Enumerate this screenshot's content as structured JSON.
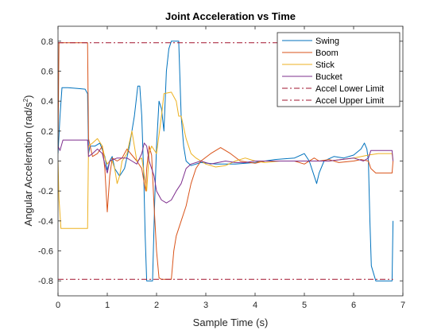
{
  "chart_data": {
    "type": "line",
    "title": "Joint Acceleration vs Time",
    "xlabel": "Sample Time (s)",
    "ylabel": "Angular  Acceleration  (rad/s",
    "ylabel_sup": "2",
    "ylabel_close": ")",
    "xlim": [
      0,
      7
    ],
    "ylim": [
      -0.9,
      0.9
    ],
    "x_ticks": [
      0,
      1,
      2,
      3,
      4,
      5,
      6,
      7
    ],
    "x_tick_labels": [
      "0",
      "1",
      "2",
      "3",
      "4",
      "5",
      "6",
      "7"
    ],
    "y_ticks": [
      -0.8,
      -0.6,
      -0.4,
      -0.2,
      0,
      0.2,
      0.4,
      0.6,
      0.8
    ],
    "y_tick_labels": [
      "-0.8",
      "-0.6",
      "-0.4",
      "-0.2",
      "0",
      "0.2",
      "0.4",
      "0.6",
      "0.8"
    ],
    "grid": false,
    "legend_position": "top-right",
    "series": [
      {
        "name": "Swing",
        "color": "#0072BD",
        "dash": "solid",
        "points": [
          [
            0,
            0.05
          ],
          [
            0.04,
            0.3
          ],
          [
            0.08,
            0.49
          ],
          [
            0.2,
            0.49
          ],
          [
            0.4,
            0.485
          ],
          [
            0.55,
            0.48
          ],
          [
            0.6,
            0.45
          ],
          [
            0.62,
            0.05
          ],
          [
            0.65,
            0.1
          ],
          [
            0.75,
            0.1
          ],
          [
            0.85,
            0.12
          ],
          [
            0.95,
            0.03
          ],
          [
            1.0,
            -0.06
          ],
          [
            1.05,
            0.0
          ],
          [
            1.1,
            0.03
          ],
          [
            1.15,
            -0.05
          ],
          [
            1.25,
            -0.1
          ],
          [
            1.35,
            -0.05
          ],
          [
            1.45,
            0.1
          ],
          [
            1.55,
            0.3
          ],
          [
            1.62,
            0.5
          ],
          [
            1.66,
            0.5
          ],
          [
            1.7,
            0.3
          ],
          [
            1.74,
            -0.1
          ],
          [
            1.77,
            -0.5
          ],
          [
            1.8,
            -0.8
          ],
          [
            1.92,
            -0.8
          ],
          [
            1.96,
            -0.3
          ],
          [
            2.0,
            0.1
          ],
          [
            2.05,
            0.4
          ],
          [
            2.1,
            0.35
          ],
          [
            2.15,
            0.2
          ],
          [
            2.2,
            0.6
          ],
          [
            2.25,
            0.75
          ],
          [
            2.3,
            0.8
          ],
          [
            2.45,
            0.8
          ],
          [
            2.5,
            0.3
          ],
          [
            2.55,
            0.1
          ],
          [
            2.6,
            0.0
          ],
          [
            2.7,
            -0.03
          ],
          [
            2.9,
            -0.01
          ],
          [
            3.2,
            -0.02
          ],
          [
            3.6,
            -0.02
          ],
          [
            4.0,
            -0.01
          ],
          [
            4.4,
            0.01
          ],
          [
            4.8,
            0.02
          ],
          [
            5.0,
            0.05
          ],
          [
            5.1,
            0.0
          ],
          [
            5.2,
            -0.1
          ],
          [
            5.25,
            -0.15
          ],
          [
            5.3,
            -0.08
          ],
          [
            5.4,
            0.0
          ],
          [
            5.6,
            0.03
          ],
          [
            5.8,
            0.02
          ],
          [
            6.0,
            0.04
          ],
          [
            6.15,
            0.08
          ],
          [
            6.22,
            0.12
          ],
          [
            6.27,
            0.08
          ],
          [
            6.3,
            0.0
          ],
          [
            6.33,
            -0.4
          ],
          [
            6.36,
            -0.7
          ],
          [
            6.45,
            -0.8
          ],
          [
            6.78,
            -0.8
          ],
          [
            6.8,
            -0.4
          ]
        ]
      },
      {
        "name": "Boom",
        "color": "#D95319",
        "dash": "solid",
        "points": [
          [
            0,
            0.1
          ],
          [
            0.02,
            0.79
          ],
          [
            0.6,
            0.79
          ],
          [
            0.62,
            0.15
          ],
          [
            0.7,
            0.03
          ],
          [
            0.8,
            0.05
          ],
          [
            0.9,
            0.1
          ],
          [
            0.95,
            -0.05
          ],
          [
            1.0,
            -0.34
          ],
          [
            1.05,
            -0.1
          ],
          [
            1.1,
            0.02
          ],
          [
            1.2,
            0.0
          ],
          [
            1.3,
            0.02
          ],
          [
            1.4,
            0.08
          ],
          [
            1.5,
            0.04
          ],
          [
            1.6,
            0.0
          ],
          [
            1.7,
            -0.05
          ],
          [
            1.75,
            -0.15
          ],
          [
            1.78,
            -0.2
          ],
          [
            1.8,
            -0.05
          ],
          [
            1.85,
            0.1
          ],
          [
            1.9,
            0.04
          ],
          [
            1.95,
            -0.3
          ],
          [
            2.0,
            -0.6
          ],
          [
            2.05,
            -0.78
          ],
          [
            2.1,
            -0.79
          ],
          [
            2.3,
            -0.79
          ],
          [
            2.35,
            -0.6
          ],
          [
            2.4,
            -0.5
          ],
          [
            2.5,
            -0.4
          ],
          [
            2.6,
            -0.3
          ],
          [
            2.7,
            -0.15
          ],
          [
            2.8,
            -0.05
          ],
          [
            2.9,
            0.0
          ],
          [
            3.1,
            0.05
          ],
          [
            3.3,
            0.09
          ],
          [
            3.5,
            0.05
          ],
          [
            3.7,
            0.0
          ],
          [
            3.9,
            -0.01
          ],
          [
            4.0,
            -0.015
          ],
          [
            4.2,
            0.0
          ],
          [
            4.5,
            0.0
          ],
          [
            4.8,
            0.0
          ],
          [
            5.0,
            -0.02
          ],
          [
            5.2,
            0.02
          ],
          [
            5.3,
            0.0
          ],
          [
            5.5,
            0.01
          ],
          [
            5.7,
            -0.01
          ],
          [
            6.0,
            0.0
          ],
          [
            6.15,
            0.01
          ],
          [
            6.3,
            0.0
          ],
          [
            6.35,
            -0.05
          ],
          [
            6.45,
            -0.08
          ],
          [
            6.78,
            -0.08
          ],
          [
            6.8,
            0.0
          ]
        ]
      },
      {
        "name": "Stick",
        "color": "#EDB120",
        "dash": "solid",
        "points": [
          [
            0,
            0.0
          ],
          [
            0.02,
            -0.25
          ],
          [
            0.06,
            -0.45
          ],
          [
            0.6,
            -0.45
          ],
          [
            0.62,
            0.1
          ],
          [
            0.7,
            0.12
          ],
          [
            0.8,
            0.15
          ],
          [
            0.9,
            0.1
          ],
          [
            0.95,
            0.02
          ],
          [
            1.0,
            -0.02
          ],
          [
            1.05,
            0.0
          ],
          [
            1.1,
            0.0
          ],
          [
            1.15,
            -0.05
          ],
          [
            1.2,
            -0.15
          ],
          [
            1.25,
            -0.1
          ],
          [
            1.3,
            0.0
          ],
          [
            1.4,
            0.05
          ],
          [
            1.5,
            0.2
          ],
          [
            1.55,
            0.1
          ],
          [
            1.6,
            0.0
          ],
          [
            1.7,
            0.02
          ],
          [
            1.8,
            -0.2
          ],
          [
            1.85,
            0.05
          ],
          [
            1.9,
            0.1
          ],
          [
            2.0,
            0.05
          ],
          [
            2.1,
            0.3
          ],
          [
            2.15,
            0.45
          ],
          [
            2.3,
            0.46
          ],
          [
            2.4,
            0.4
          ],
          [
            2.45,
            0.3
          ],
          [
            2.5,
            0.3
          ],
          [
            2.6,
            0.15
          ],
          [
            2.7,
            0.05
          ],
          [
            2.8,
            0.02
          ],
          [
            3.0,
            -0.02
          ],
          [
            3.2,
            -0.04
          ],
          [
            3.4,
            -0.03
          ],
          [
            3.6,
            0.0
          ],
          [
            3.8,
            0.02
          ],
          [
            4.0,
            0.0
          ],
          [
            4.2,
            -0.01
          ],
          [
            4.5,
            0.0
          ],
          [
            5.0,
            0.0
          ],
          [
            5.5,
            0.0
          ],
          [
            6.0,
            0.02
          ],
          [
            6.3,
            0.04
          ],
          [
            6.5,
            0.05
          ],
          [
            6.78,
            0.05
          ],
          [
            6.8,
            0.0
          ]
        ]
      },
      {
        "name": "Bucket",
        "color": "#7E2F8E",
        "dash": "solid",
        "points": [
          [
            0,
            0.1
          ],
          [
            0.04,
            0.07
          ],
          [
            0.1,
            0.14
          ],
          [
            0.6,
            0.14
          ],
          [
            0.62,
            0.03
          ],
          [
            0.7,
            0.05
          ],
          [
            0.8,
            0.08
          ],
          [
            0.9,
            0.05
          ],
          [
            0.95,
            -0.02
          ],
          [
            1.0,
            -0.08
          ],
          [
            1.05,
            0.0
          ],
          [
            1.2,
            0.02
          ],
          [
            1.4,
            0.02
          ],
          [
            1.5,
            0.0
          ],
          [
            1.6,
            -0.02
          ],
          [
            1.7,
            0.05
          ],
          [
            1.75,
            0.12
          ],
          [
            1.8,
            0.1
          ],
          [
            1.85,
            0.0
          ],
          [
            1.9,
            -0.05
          ],
          [
            1.95,
            -0.1
          ],
          [
            2.0,
            -0.2
          ],
          [
            2.1,
            -0.26
          ],
          [
            2.2,
            -0.28
          ],
          [
            2.3,
            -0.26
          ],
          [
            2.4,
            -0.2
          ],
          [
            2.5,
            -0.15
          ],
          [
            2.6,
            -0.05
          ],
          [
            2.7,
            -0.02
          ],
          [
            2.9,
            0.0
          ],
          [
            3.1,
            -0.02
          ],
          [
            3.4,
            0.0
          ],
          [
            3.6,
            -0.01
          ],
          [
            3.8,
            -0.01
          ],
          [
            4.0,
            0.0
          ],
          [
            4.3,
            0.0
          ],
          [
            4.6,
            0.0
          ],
          [
            5.0,
            0.0
          ],
          [
            5.5,
            0.0
          ],
          [
            6.0,
            0.02
          ],
          [
            6.2,
            0.0
          ],
          [
            6.3,
            0.02
          ],
          [
            6.35,
            0.07
          ],
          [
            6.78,
            0.07
          ],
          [
            6.8,
            0.0
          ]
        ]
      },
      {
        "name": "Accel Lower Limit",
        "color": "#A2142F",
        "dash": "dashdot",
        "points": [
          [
            0,
            0.79
          ],
          [
            6.8,
            0.79
          ]
        ]
      },
      {
        "name": "Accel Upper Limit",
        "color": "#A2142F",
        "dash": "dashdot",
        "points": [
          [
            0,
            -0.79
          ],
          [
            6.8,
            -0.79
          ]
        ]
      }
    ]
  }
}
